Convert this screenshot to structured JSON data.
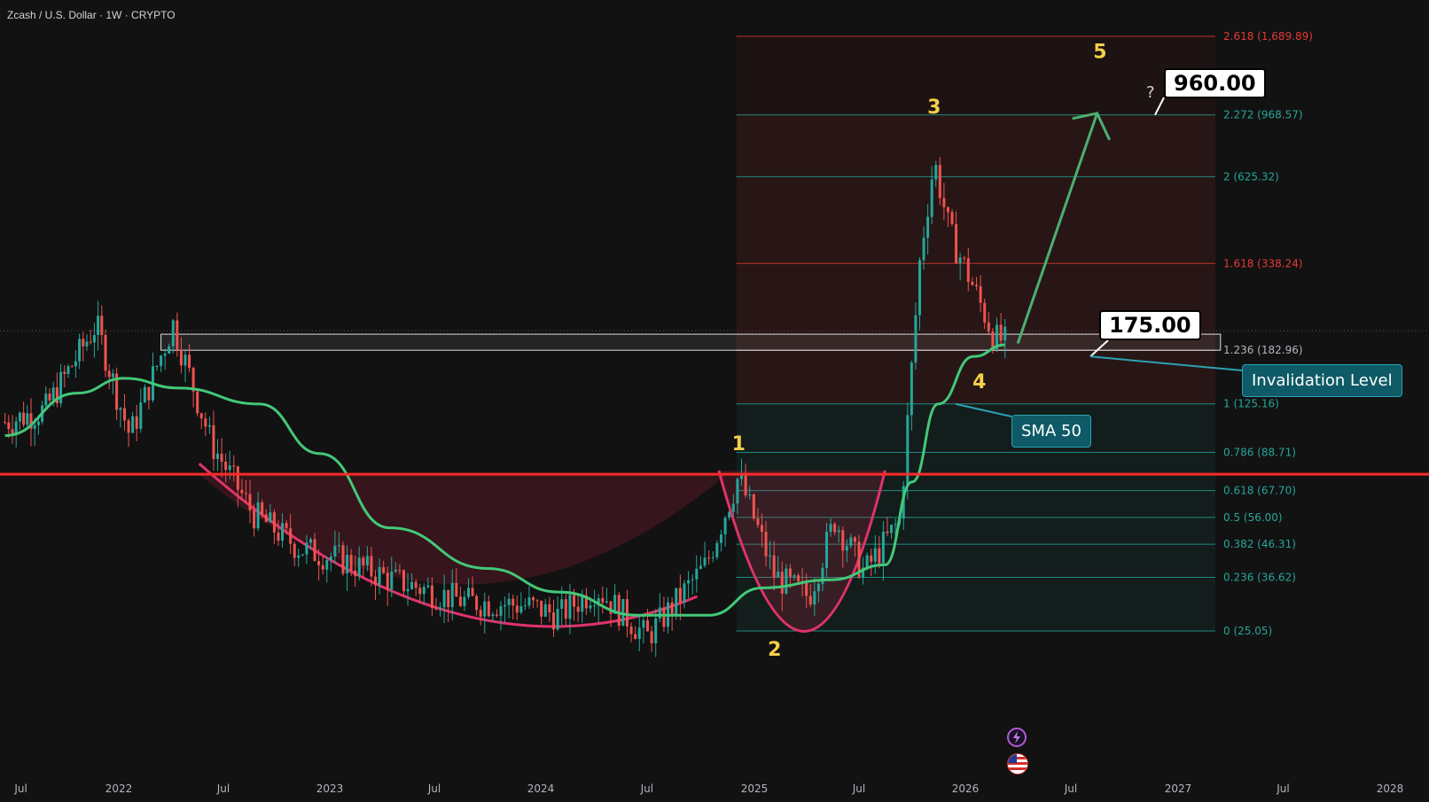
{
  "symbol_title": "Zcash / U.S. Dollar · 1W · CRYPTO",
  "chart_data": {
    "type": "candlestick",
    "series_name": "Zcash / U.S. Dollar",
    "timeframe": "1W",
    "y_scale": "log",
    "x_ticks": [
      "Jul",
      "2022",
      "Jul",
      "2023",
      "Jul",
      "2024",
      "Jul",
      "2025",
      "Jul",
      "2026",
      "Jul",
      "2027",
      "Jul",
      "2028"
    ],
    "fib_levels": [
      {
        "label": "2.618 (1,689.89)",
        "price": 1689.89,
        "color": "#e53935"
      },
      {
        "label": "2.272 (968.57)",
        "price": 968.57,
        "color": "#26a69a"
      },
      {
        "label": "2 (625.32)",
        "price": 625.32,
        "color": "#26a69a"
      },
      {
        "label": "1.618 (338.24)",
        "price": 338.24,
        "color": "#e53935"
      },
      {
        "label": "1.236 (182.96)",
        "price": 182.96,
        "color": "#b2b5be"
      },
      {
        "label": "1 (125.16)",
        "price": 125.16,
        "color": "#26a69a"
      },
      {
        "label": "0.786 (88.71)",
        "price": 88.71,
        "color": "#26a69a"
      },
      {
        "label": "0.618 (67.70)",
        "price": 67.7,
        "color": "#26a69a"
      },
      {
        "label": "0.5 (56.00)",
        "price": 56.0,
        "color": "#26a69a"
      },
      {
        "label": "0.382 (46.31)",
        "price": 46.31,
        "color": "#26a69a"
      },
      {
        "label": "0.236 (36.62)",
        "price": 36.62,
        "color": "#26a69a"
      },
      {
        "label": "0 (25.05)",
        "price": 25.05,
        "color": "#26a69a"
      }
    ],
    "price_path": [
      [
        "2021-06-01",
        110
      ],
      [
        "2021-08-15",
        120
      ],
      [
        "2021-11-20",
        220
      ],
      [
        "2022-01-20",
        100
      ],
      [
        "2022-04-05",
        220
      ],
      [
        "2022-06-10",
        95
      ],
      [
        "2022-08-20",
        58
      ],
      [
        "2022-11-10",
        45
      ],
      [
        "2023-01-15",
        42
      ],
      [
        "2023-04-20",
        36
      ],
      [
        "2023-08-20",
        31
      ],
      [
        "2023-12-10",
        30
      ],
      [
        "2024-02-01",
        28
      ],
      [
        "2024-04-05",
        34
      ],
      [
        "2024-07-01",
        24
      ],
      [
        "2024-10-10",
        40
      ],
      [
        "2024-12-05",
        75
      ],
      [
        "2025-02-05",
        37
      ],
      [
        "2025-04-05",
        32
      ],
      [
        "2025-05-20",
        55
      ],
      [
        "2025-07-10",
        38
      ],
      [
        "2025-09-10",
        55
      ],
      [
        "2025-10-15",
        360
      ],
      [
        "2025-11-08",
        700
      ],
      [
        "2025-12-05",
        420
      ],
      [
        "2026-01-10",
        300
      ],
      [
        "2026-02-20",
        200
      ],
      [
        "2026-03-10",
        195
      ]
    ],
    "sma50_path": [
      [
        "2021-06-01",
        100
      ],
      [
        "2021-10-15",
        135
      ],
      [
        "2022-01-10",
        150
      ],
      [
        "2022-04-15",
        140
      ],
      [
        "2022-09-01",
        125
      ],
      [
        "2022-12-15",
        88
      ],
      [
        "2023-04-15",
        52
      ],
      [
        "2023-10-01",
        39
      ],
      [
        "2024-02-01",
        33
      ],
      [
        "2024-06-15",
        28
      ],
      [
        "2024-10-15",
        28
      ],
      [
        "2025-01-15",
        34
      ],
      [
        "2025-05-15",
        36
      ],
      [
        "2025-08-15",
        40
      ],
      [
        "2025-10-01",
        72
      ],
      [
        "2025-11-15",
        125
      ],
      [
        "2026-01-15",
        175
      ],
      [
        "2026-03-10",
        190
      ]
    ],
    "sma_label": "SMA 50",
    "horizontal_level": {
      "price": 76,
      "color": "#ff2b2b"
    },
    "waves": [
      {
        "label": "1",
        "date": "2024-12-05",
        "price": 90
      },
      {
        "label": "2",
        "date": "2025-02-05",
        "price": 21
      },
      {
        "label": "3",
        "date": "2025-11-08",
        "price": 980
      },
      {
        "label": "4",
        "date": "2026-01-25",
        "price": 140
      },
      {
        "label": "5",
        "date": "2026-08-20",
        "price": 1450
      }
    ],
    "projection": {
      "from_date": "2026-04-01",
      "from_price": 192,
      "to_date": "2026-08-15",
      "to_price": 980,
      "color": "#4caf72"
    },
    "zone": {
      "from_date": "2022-03-15",
      "to_date": "2027-03-15",
      "low": 182.96,
      "high": 205
    }
  },
  "callouts": {
    "target": {
      "value": "960.00",
      "mark": "?"
    },
    "invalidation": {
      "value": "175.00"
    },
    "invalidation_label": "Invalidation Level",
    "sma_label": "SMA 50"
  },
  "icons": {
    "lightning": "lightning-icon",
    "flag": "us-flag-icon"
  }
}
